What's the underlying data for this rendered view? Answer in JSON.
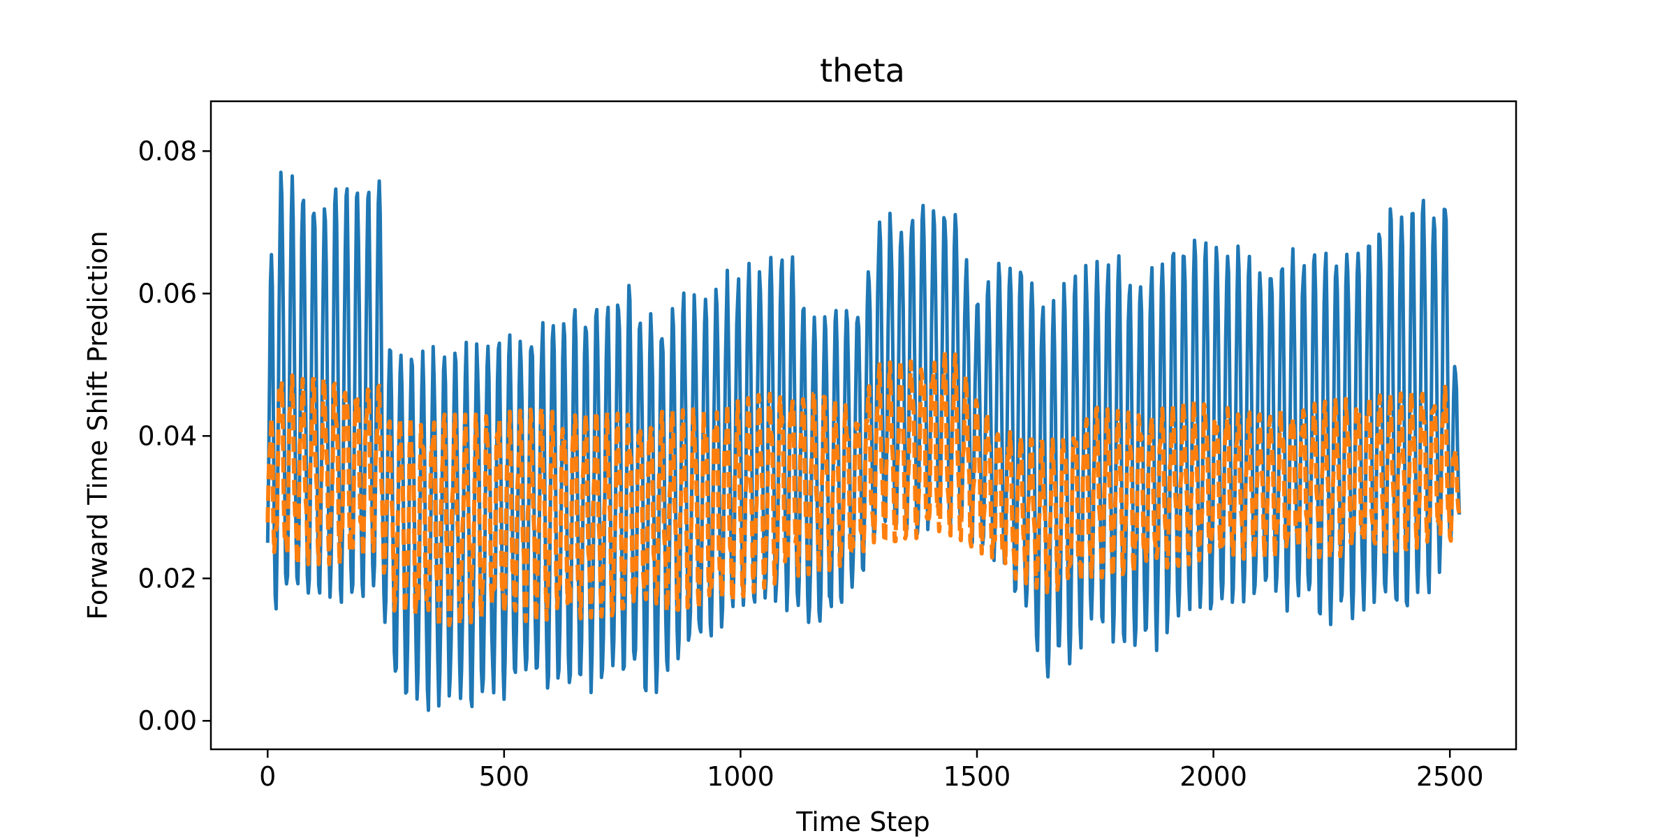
{
  "chart_data": {
    "type": "line",
    "title": "theta",
    "xlabel": "Time Step",
    "ylabel": "Forward Time Shift Prediction",
    "xlim": [
      -120,
      2640
    ],
    "ylim": [
      -0.004,
      0.087
    ],
    "xticks": [
      0,
      500,
      1000,
      1500,
      2000,
      2500
    ],
    "xtick_labels": [
      "0",
      "500",
      "1000",
      "1500",
      "2000",
      "2500"
    ],
    "yticks": [
      0.0,
      0.02,
      0.04,
      0.06,
      0.08
    ],
    "ytick_labels": [
      "0.00",
      "0.02",
      "0.04",
      "0.06",
      "0.08"
    ],
    "grid": false,
    "legend": "none",
    "x_range": [
      0,
      2520
    ],
    "oscillation_period": 23,
    "series": [
      {
        "color": "#1f77b4",
        "linestyle": "solid",
        "envelope_x": [
          0,
          10,
          60,
          150,
          240,
          255,
          330,
          450,
          600,
          760,
          820,
          950,
          1100,
          1150,
          1250,
          1290,
          1450,
          1500,
          1580,
          1650,
          1750,
          1850,
          1950,
          2100,
          2250,
          2400,
          2500,
          2520
        ],
        "envelope_upper": [
          0.03,
          0.0825,
          0.076,
          0.077,
          0.077,
          0.055,
          0.053,
          0.054,
          0.058,
          0.063,
          0.058,
          0.063,
          0.067,
          0.058,
          0.06,
          0.0715,
          0.075,
          0.06,
          0.069,
          0.06,
          0.067,
          0.064,
          0.071,
          0.066,
          0.068,
          0.074,
          0.076,
          0.035
        ],
        "envelope_lower": [
          0.02,
          0.014,
          0.014,
          0.014,
          0.016,
          0.004,
          0.0005,
          0.0015,
          0.003,
          0.004,
          0.002,
          0.012,
          0.015,
          0.01,
          0.018,
          0.025,
          0.025,
          0.024,
          0.016,
          0.003,
          0.012,
          0.008,
          0.013,
          0.016,
          0.013,
          0.013,
          0.02,
          0.026
        ]
      },
      {
        "color": "#ff7f0e",
        "linestyle": "dashed",
        "envelope_x": [
          0,
          10,
          60,
          150,
          240,
          255,
          330,
          450,
          600,
          760,
          950,
          1100,
          1250,
          1290,
          1450,
          1500,
          1580,
          1650,
          1750,
          1850,
          1950,
          2100,
          2250,
          2400,
          2500,
          2520
        ],
        "envelope_upper": [
          0.03,
          0.051,
          0.048,
          0.048,
          0.047,
          0.042,
          0.043,
          0.043,
          0.044,
          0.043,
          0.044,
          0.047,
          0.044,
          0.05,
          0.052,
          0.045,
          0.04,
          0.039,
          0.044,
          0.043,
          0.045,
          0.043,
          0.045,
          0.046,
          0.047,
          0.032
        ],
        "envelope_lower": [
          0.024,
          0.022,
          0.022,
          0.022,
          0.024,
          0.016,
          0.013,
          0.014,
          0.014,
          0.015,
          0.016,
          0.02,
          0.022,
          0.025,
          0.026,
          0.024,
          0.02,
          0.018,
          0.02,
          0.021,
          0.022,
          0.023,
          0.023,
          0.024,
          0.025,
          0.028
        ]
      }
    ]
  }
}
